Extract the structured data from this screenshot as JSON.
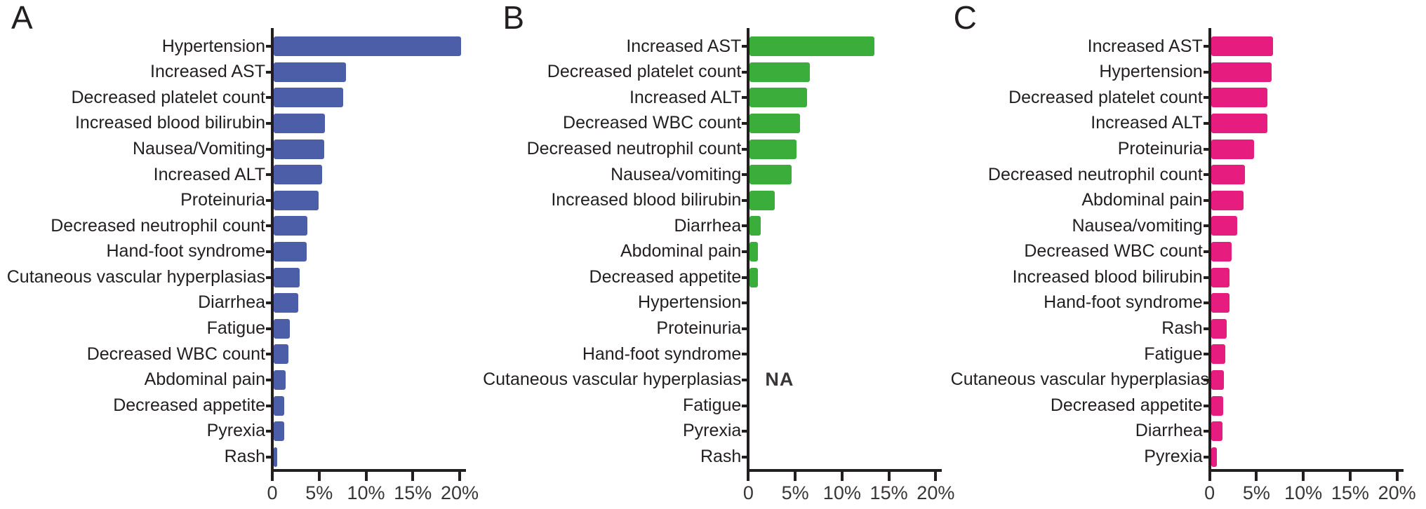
{
  "figure": {
    "background": "#ffffff",
    "axis_color": "#231f20",
    "text_color": "#231f20"
  },
  "chart_data": [
    {
      "type": "bar",
      "panel_label": "A",
      "orientation": "horizontal",
      "color": "#4d5ea8",
      "xlim": [
        0,
        20
      ],
      "x_tick_labels": [
        "0",
        "5%",
        "10%",
        "15%",
        "20%"
      ],
      "x_tick_values": [
        0,
        5,
        10,
        15,
        20
      ],
      "grid": false,
      "categories": [
        "Hypertension",
        "Increased AST",
        "Decreased platelet count",
        "Increased blood bilirubin",
        "Nausea/Vomiting",
        "Increased ALT",
        "Proteinuria",
        "Decreased neutrophil count",
        "Hand-foot syndrome",
        "Cutaneous vascular hyperplasias",
        "Diarrhea",
        "Fatigue",
        "Decreased WBC count",
        "Abdominal pain",
        "Decreased appetite",
        "Pyrexia",
        "Rash"
      ],
      "values": [
        20,
        7.7,
        7.4,
        5.5,
        5.4,
        5.2,
        4.8,
        3.6,
        3.5,
        2.8,
        2.6,
        1.7,
        1.6,
        1.3,
        1.1,
        1.1,
        0.4
      ]
    },
    {
      "type": "bar",
      "panel_label": "B",
      "orientation": "horizontal",
      "color": "#3aad3a",
      "xlim": [
        0,
        20
      ],
      "x_tick_labels": [
        "0",
        "5%",
        "10%",
        "15%",
        "20%"
      ],
      "x_tick_values": [
        0,
        5,
        10,
        15,
        20
      ],
      "grid": false,
      "na_label": "NA",
      "na_row_index": 13,
      "categories": [
        "Increased AST",
        "Decreased platelet count",
        "Increased ALT",
        "Decreased WBC count",
        "Decreased neutrophil count",
        "Nausea/vomiting",
        "Increased blood bilirubin",
        "Diarrhea",
        "Abdominal pain",
        "Decreased appetite",
        "Hypertension",
        "Proteinuria",
        "Hand-foot syndrome",
        "Cutaneous vascular hyperplasias",
        "Fatigue",
        "Pyrexia",
        "Rash"
      ],
      "values": [
        13.3,
        6.4,
        6.1,
        5.4,
        5.0,
        4.5,
        2.7,
        1.2,
        0.9,
        0.9,
        null,
        null,
        null,
        null,
        null,
        null,
        null
      ]
    },
    {
      "type": "bar",
      "panel_label": "C",
      "orientation": "horizontal",
      "color": "#e61c7e",
      "xlim": [
        0,
        20
      ],
      "x_tick_labels": [
        "0",
        "5%",
        "10%",
        "15%",
        "20%"
      ],
      "x_tick_values": [
        0,
        5,
        10,
        15,
        20
      ],
      "grid": false,
      "categories": [
        "Increased AST",
        "Hypertension",
        "Decreased platelet count",
        "Increased ALT",
        "Proteinuria",
        "Decreased neutrophil count",
        "Abdominal pain",
        "Nausea/vomiting",
        "Decreased WBC count",
        "Increased blood bilirubin",
        "Hand-foot syndrome",
        "Rash",
        "Fatigue",
        "Cutaneous vascular hyperplasias",
        "Decreased appetite",
        "Diarrhea",
        "Pyrexia"
      ],
      "values": [
        6.6,
        6.5,
        6.0,
        6.0,
        4.6,
        3.6,
        3.5,
        2.8,
        2.2,
        2.0,
        2.0,
        1.7,
        1.5,
        1.4,
        1.3,
        1.2,
        0.6
      ]
    }
  ]
}
